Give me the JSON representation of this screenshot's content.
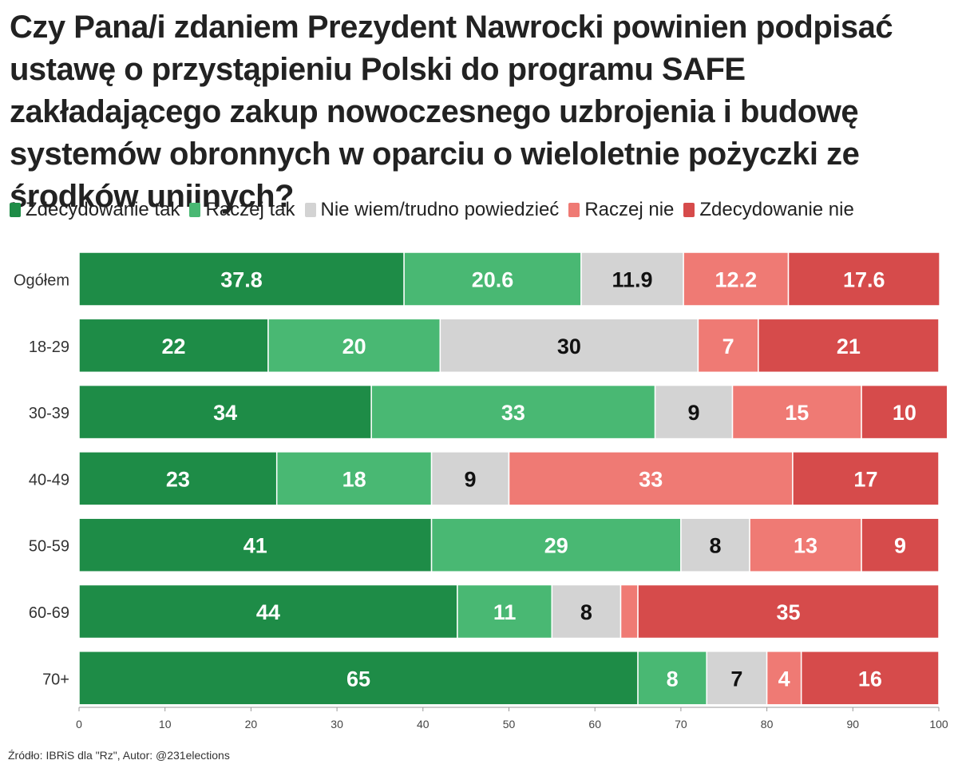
{
  "title": "Czy Pana/i zdaniem Prezydent Nawrocki powinien podpisać ustawę o przystąpieniu Polski do programu SAFE zakładającego zakup nowoczesnego uzbrojenia i budowę systemów obronnych w oparciu o wieloletnie pożyczki ze środków unijnych?",
  "legend": [
    {
      "label": "Zdecydowanie tak",
      "color": "#1e8c47"
    },
    {
      "label": "Raczej tak",
      "color": "#49b873"
    },
    {
      "label": "Nie wiem/trudno powiedzieć",
      "color": "#d3d3d3"
    },
    {
      "label": "Raczej nie",
      "color": "#ef7a74"
    },
    {
      "label": "Zdecydowanie nie",
      "color": "#d64b4b"
    }
  ],
  "source": "Źródło: IBRiS dla \"Rz\", Autor: @231elections",
  "chart_data": {
    "type": "bar",
    "orientation": "horizontal",
    "stacked": true,
    "categories": [
      "Ogółem",
      "18-29",
      "30-39",
      "40-49",
      "50-59",
      "60-69",
      "70+"
    ],
    "series": [
      {
        "name": "Zdecydowanie tak",
        "color": "#1e8c47",
        "label_color": "#ffffff",
        "values": [
          37.8,
          22,
          34,
          23,
          41,
          44,
          65
        ]
      },
      {
        "name": "Raczej tak",
        "color": "#49b873",
        "label_color": "#ffffff",
        "values": [
          20.6,
          20,
          33,
          18,
          29,
          11,
          8
        ]
      },
      {
        "name": "Nie wiem/trudno powiedzieć",
        "color": "#d3d3d3",
        "label_color": "#111111",
        "values": [
          11.9,
          30,
          9,
          9,
          8,
          8,
          7
        ]
      },
      {
        "name": "Raczej nie",
        "color": "#ef7a74",
        "label_color": "#ffffff",
        "values": [
          12.2,
          7,
          15,
          33,
          13,
          2,
          4
        ]
      },
      {
        "name": "Zdecydowanie nie",
        "color": "#d64b4b",
        "label_color": "#ffffff",
        "values": [
          17.6,
          21,
          10,
          17,
          9,
          35,
          16
        ]
      }
    ],
    "data_labels": [
      [
        "37.8",
        "20.6",
        "11.9",
        "12.2",
        "17.6"
      ],
      [
        "22",
        "20",
        "30",
        "7",
        "21"
      ],
      [
        "34",
        "33",
        "9",
        "15",
        "10"
      ],
      [
        "23",
        "18",
        "9",
        "33",
        "17"
      ],
      [
        "41",
        "29",
        "8",
        "13",
        "9"
      ],
      [
        "44",
        "11",
        "8",
        "",
        "35"
      ],
      [
        "65",
        "8",
        "7",
        "4",
        "16"
      ]
    ],
    "xlim": [
      0,
      100
    ],
    "xticks": [
      "0",
      "10",
      "20",
      "30",
      "40",
      "50",
      "60",
      "70",
      "80",
      "90",
      "100"
    ],
    "xlabel": "",
    "ylabel": "",
    "grid": false
  }
}
